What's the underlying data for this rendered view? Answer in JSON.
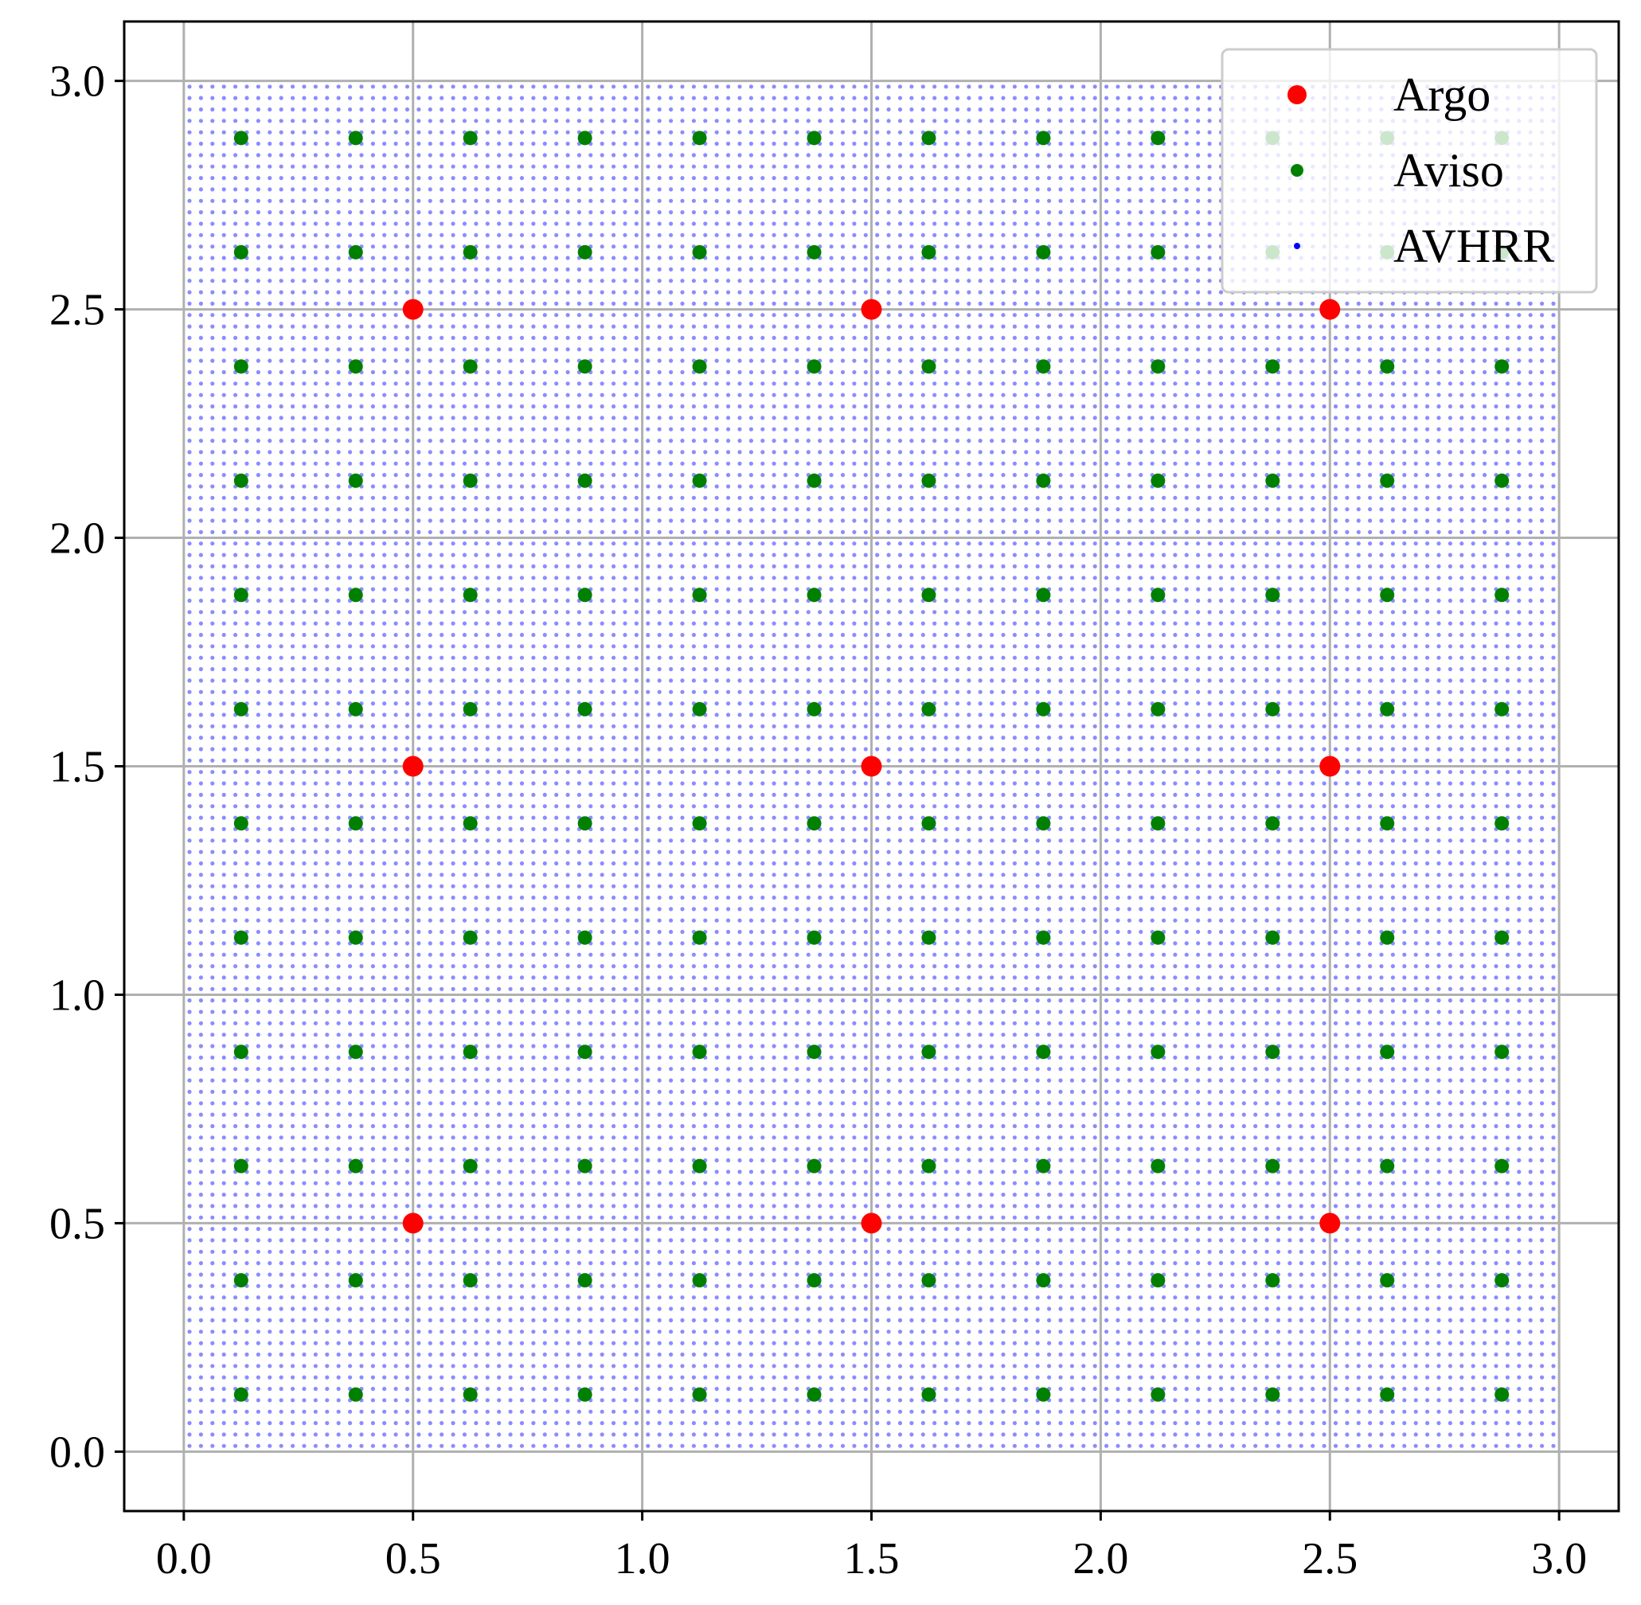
{
  "chart_data": {
    "type": "scatter",
    "title": "",
    "xlabel": "",
    "ylabel": "",
    "xlim": [
      -0.13,
      3.13
    ],
    "ylim": [
      -0.13,
      3.13
    ],
    "x_ticks": [
      0.0,
      0.5,
      1.0,
      1.5,
      2.0,
      2.5,
      3.0
    ],
    "y_ticks": [
      0.0,
      0.5,
      1.0,
      1.5,
      2.0,
      2.5,
      3.0
    ],
    "x_tick_labels": [
      "0.0",
      "0.5",
      "1.0",
      "1.5",
      "2.0",
      "2.5",
      "3.0"
    ],
    "y_tick_labels": [
      "0.0",
      "0.5",
      "1.0",
      "1.5",
      "2.0",
      "2.5",
      "3.0"
    ],
    "grid": true,
    "legend_position": "top-right",
    "series": [
      {
        "name": "Argo",
        "color": "#ff0000",
        "grid_spacing": 1.0,
        "x": [
          0.5,
          1.5,
          2.5
        ],
        "y": [
          0.5,
          1.5,
          2.5
        ]
      },
      {
        "name": "Aviso",
        "color": "#008000",
        "grid_spacing": 0.25,
        "x": [
          0.125,
          0.375,
          0.625,
          0.875,
          1.125,
          1.375,
          1.625,
          1.875,
          2.125,
          2.375,
          2.625,
          2.875
        ],
        "y": [
          0.125,
          0.375,
          0.625,
          0.875,
          1.125,
          1.375,
          1.625,
          1.875,
          2.125,
          2.375,
          2.625,
          2.875
        ]
      },
      {
        "name": "AVHRR",
        "color": "#0000ff",
        "grid_spacing": 0.025,
        "x_range": [
          0.0125,
          2.9875
        ],
        "y_range": [
          0.0125,
          2.9875
        ]
      }
    ]
  }
}
